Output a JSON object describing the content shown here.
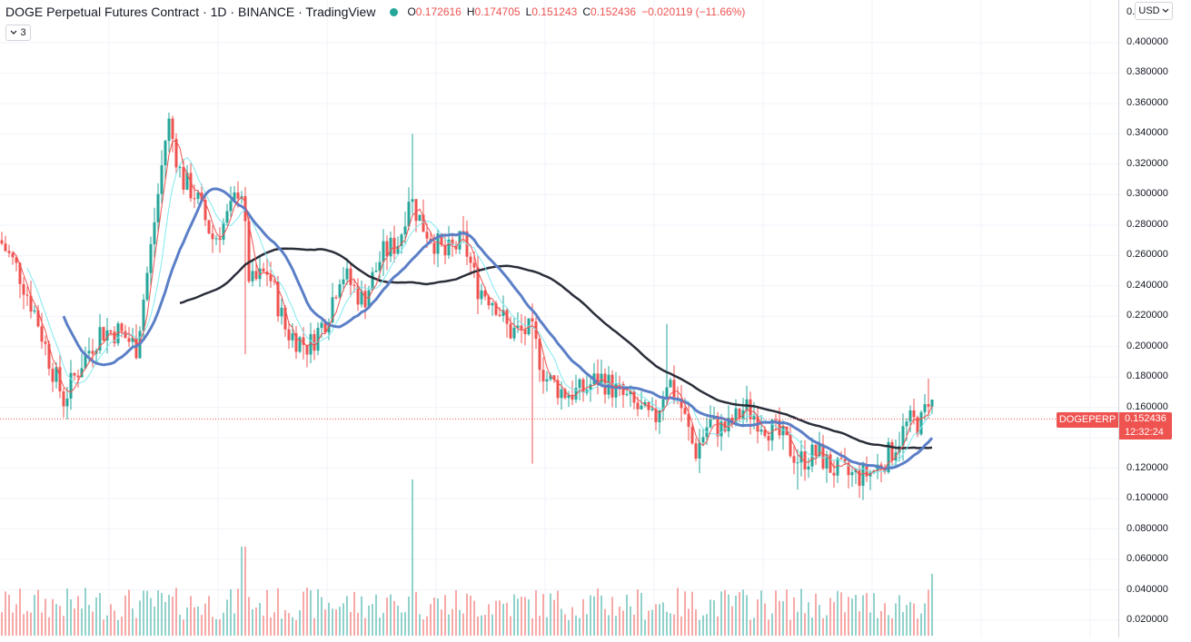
{
  "legend": {
    "title": "DOGE Perpetual Futures Contract · 1D · BINANCE · TradingView",
    "open_label": "O",
    "open": "0.172616",
    "high_label": "H",
    "high": "0.174705",
    "low_label": "L",
    "low": "0.151243",
    "close_label": "C",
    "close": "0.152436",
    "change": "−0.020119 (−11.66%)",
    "collapse_count": "3",
    "collapse_icon": "chevron-down-icon"
  },
  "currency": "USD",
  "price_axis": {
    "ticks": [
      "0.400000",
      "0.380000",
      "0.360000",
      "0.340000",
      "0.320000",
      "0.300000",
      "0.280000",
      "0.260000",
      "0.240000",
      "0.220000",
      "0.200000",
      "0.180000",
      "0.160000",
      "0.140000",
      "0.120000",
      "0.100000",
      "0.080000",
      "0.060000",
      "0.040000",
      "0.020000"
    ],
    "top_truncated": "0."
  },
  "last_price": {
    "symbol": "DOGEPERP",
    "price": "0.152436",
    "countdown": "12:32:24"
  },
  "colors": {
    "up": "#26a69a",
    "down": "#ef5350",
    "ma_fast": "#ef5350",
    "ma_cyan": "#7fe9f0",
    "ma_blue": "#5b7fc7",
    "ma_black": "#2a2e39"
  },
  "chart_data": {
    "type": "candlestick",
    "price_range": [
      0.0,
      0.41
    ],
    "series_anchors": {
      "close_path": [
        [
          0,
          0.27
        ],
        [
          20,
          0.25
        ],
        [
          40,
          0.22
        ],
        [
          55,
          0.19
        ],
        [
          70,
          0.165
        ],
        [
          90,
          0.19
        ],
        [
          110,
          0.21
        ],
        [
          130,
          0.21
        ],
        [
          150,
          0.2
        ],
        [
          165,
          0.26
        ],
        [
          185,
          0.35
        ],
        [
          200,
          0.31
        ],
        [
          215,
          0.3
        ],
        [
          235,
          0.27
        ],
        [
          255,
          0.29
        ],
        [
          265,
          0.31
        ],
        [
          275,
          0.24
        ],
        [
          295,
          0.25
        ],
        [
          315,
          0.21
        ],
        [
          340,
          0.2
        ],
        [
          360,
          0.22
        ],
        [
          375,
          0.25
        ],
        [
          400,
          0.23
        ],
        [
          420,
          0.26
        ],
        [
          440,
          0.27
        ],
        [
          450,
          0.3
        ],
        [
          465,
          0.28
        ],
        [
          490,
          0.26
        ],
        [
          510,
          0.27
        ],
        [
          525,
          0.24
        ],
        [
          545,
          0.23
        ],
        [
          560,
          0.21
        ],
        [
          585,
          0.21
        ],
        [
          600,
          0.18
        ],
        [
          620,
          0.17
        ],
        [
          640,
          0.17
        ],
        [
          660,
          0.18
        ],
        [
          680,
          0.17
        ],
        [
          700,
          0.16
        ],
        [
          720,
          0.15
        ],
        [
          735,
          0.18
        ],
        [
          750,
          0.16
        ],
        [
          765,
          0.13
        ],
        [
          780,
          0.15
        ],
        [
          800,
          0.145
        ],
        [
          820,
          0.16
        ],
        [
          840,
          0.15
        ],
        [
          860,
          0.14
        ],
        [
          880,
          0.125
        ],
        [
          900,
          0.13
        ],
        [
          915,
          0.12
        ],
        [
          935,
          0.115
        ],
        [
          950,
          0.115
        ],
        [
          965,
          0.12
        ],
        [
          980,
          0.13
        ],
        [
          1000,
          0.15
        ],
        [
          1015,
          0.15
        ],
        [
          1024,
          0.172
        ],
        [
          1028,
          0.152436
        ]
      ]
    },
    "volume_scale_note": "volume bars along bottom"
  }
}
